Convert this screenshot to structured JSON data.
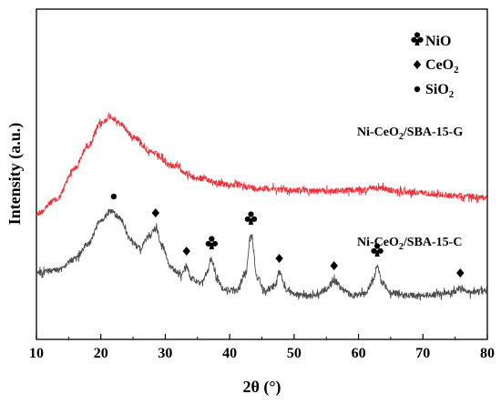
{
  "chart_data": {
    "type": "line",
    "xlabel": "2θ (°)",
    "ylabel": "Intensity (a.u.)",
    "xlim": [
      10,
      80
    ],
    "x_ticks": [
      10,
      20,
      30,
      40,
      50,
      60,
      70,
      80
    ],
    "grid": false,
    "legend": {
      "placement": "top-right",
      "entries": [
        {
          "symbol": "club",
          "label_main": "NiO",
          "label_sub": ""
        },
        {
          "symbol": "diamond",
          "label_main": "CeO",
          "label_sub": "2"
        },
        {
          "symbol": "circle",
          "label_main": "SiO",
          "label_sub": "2"
        }
      ]
    },
    "series": [
      {
        "id": "g",
        "label_main": "Ni-CeO",
        "label_sub": "2",
        "label_rest": "/SBA-15-G",
        "color": "#e8343a",
        "noise": 3.2,
        "profile": [
          [
            10,
            235
          ],
          [
            13,
            220
          ],
          [
            16,
            185
          ],
          [
            18,
            160
          ],
          [
            20,
            136
          ],
          [
            21.5,
            128
          ],
          [
            23,
            136
          ],
          [
            25,
            150
          ],
          [
            28,
            168
          ],
          [
            31,
            182
          ],
          [
            35,
            196
          ],
          [
            40,
            203
          ],
          [
            45,
            207
          ],
          [
            50,
            209
          ],
          [
            55,
            210
          ],
          [
            60,
            209
          ],
          [
            63,
            207
          ],
          [
            66,
            210
          ],
          [
            70,
            212
          ],
          [
            75,
            215
          ],
          [
            80,
            217
          ]
        ]
      },
      {
        "id": "c",
        "label_main": "Ni-CeO",
        "label_sub": "2",
        "label_rest": "/SBA-15-C",
        "color": "#4a4a4a",
        "noise": 3.2,
        "profile": [
          [
            10,
            300
          ],
          [
            13,
            297
          ],
          [
            16,
            285
          ],
          [
            18,
            268
          ],
          [
            20,
            243
          ],
          [
            21.5,
            232
          ],
          [
            23,
            240
          ],
          [
            24.5,
            262
          ],
          [
            26,
            273
          ],
          [
            27.5,
            260
          ],
          [
            28.5,
            250
          ],
          [
            29.5,
            270
          ],
          [
            31,
            295
          ],
          [
            32.5,
            303
          ],
          [
            33.3,
            292
          ],
          [
            34,
            306
          ],
          [
            35.5,
            312
          ],
          [
            36.5,
            300
          ],
          [
            37.2,
            285
          ],
          [
            38,
            305
          ],
          [
            39,
            318
          ],
          [
            41,
            320
          ],
          [
            42.5,
            300
          ],
          [
            43.3,
            258
          ],
          [
            44.3,
            305
          ],
          [
            45.5,
            320
          ],
          [
            47,
            314
          ],
          [
            47.7,
            300
          ],
          [
            48.8,
            318
          ],
          [
            50,
            324
          ],
          [
            53,
            325
          ],
          [
            55,
            318
          ],
          [
            56.2,
            308
          ],
          [
            57.5,
            318
          ],
          [
            59,
            325
          ],
          [
            61,
            322
          ],
          [
            62.2,
            310
          ],
          [
            62.9,
            293
          ],
          [
            63.8,
            312
          ],
          [
            65,
            322
          ],
          [
            68,
            325
          ],
          [
            72,
            324
          ],
          [
            75,
            320
          ],
          [
            75.8,
            316
          ],
          [
            77,
            322
          ],
          [
            80,
            320
          ]
        ]
      }
    ],
    "peak_markers": [
      {
        "symbol": "circle",
        "x": 22.0
      },
      {
        "symbol": "diamond",
        "x": 28.5
      },
      {
        "symbol": "diamond",
        "x": 33.3
      },
      {
        "symbol": "club",
        "x": 37.2
      },
      {
        "symbol": "club",
        "x": 43.3
      },
      {
        "symbol": "diamond",
        "x": 47.7
      },
      {
        "symbol": "diamond",
        "x": 56.2
      },
      {
        "symbol": "club",
        "x": 62.9
      },
      {
        "symbol": "diamond",
        "x": 75.8
      }
    ]
  }
}
